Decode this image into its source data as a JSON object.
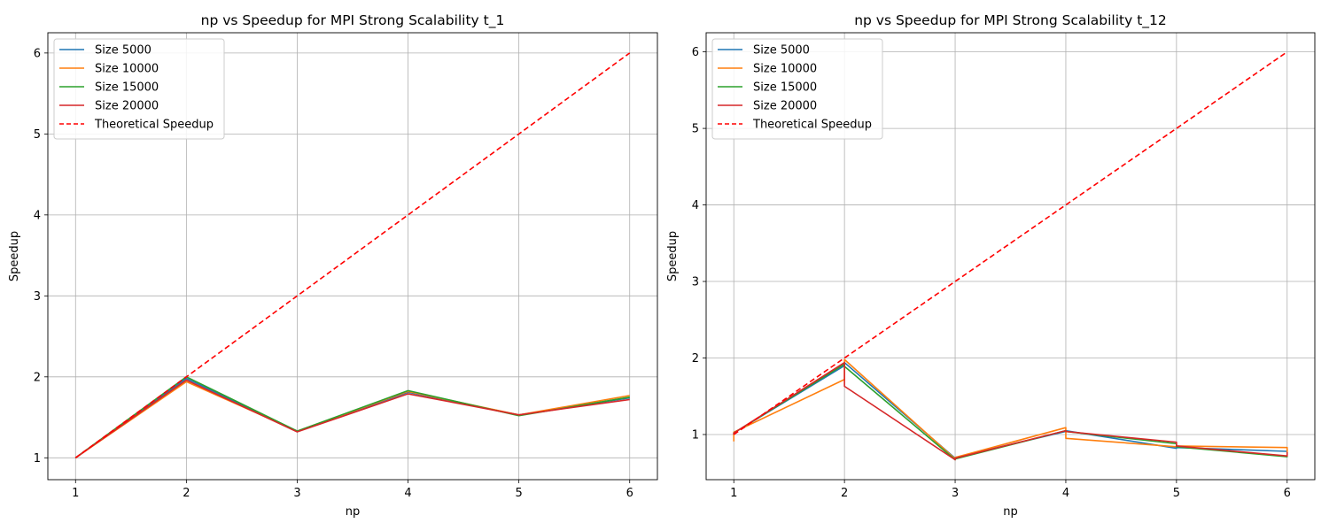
{
  "chart_data": [
    {
      "type": "line",
      "title": "np vs Speedup for MPI Strong Scalability t_1",
      "xlabel": "np",
      "ylabel": "Speedup",
      "xlim": [
        0.75,
        6.25
      ],
      "ylim": [
        0.73,
        6.25
      ],
      "xticks": [
        1,
        2,
        3,
        4,
        5,
        6
      ],
      "yticks": [
        1,
        2,
        3,
        4,
        5,
        6
      ],
      "grid": true,
      "legend_position": "top-left",
      "series": [
        {
          "name": "Size 5000",
          "color": "#1f77b4",
          "dash": false,
          "x": [
            1,
            2,
            3,
            4,
            5,
            6
          ],
          "y": [
            1.0,
            1.98,
            1.33,
            1.81,
            1.53,
            1.74
          ]
        },
        {
          "name": "Size 10000",
          "color": "#ff7f0e",
          "dash": false,
          "x": [
            1,
            2,
            3,
            4,
            5,
            6
          ],
          "y": [
            1.0,
            1.94,
            1.33,
            1.82,
            1.53,
            1.77
          ]
        },
        {
          "name": "Size 15000",
          "color": "#2ca02c",
          "dash": false,
          "x": [
            1,
            2,
            3,
            4,
            5,
            6
          ],
          "y": [
            1.0,
            2.0,
            1.33,
            1.83,
            1.52,
            1.75
          ]
        },
        {
          "name": "Size 20000",
          "color": "#d62728",
          "dash": false,
          "x": [
            1,
            2,
            3,
            4,
            5,
            6
          ],
          "y": [
            1.0,
            1.96,
            1.32,
            1.79,
            1.53,
            1.72
          ]
        },
        {
          "name": "Theoretical Speedup",
          "color": "#ff0000",
          "dash": true,
          "x": [
            1,
            2,
            3,
            4,
            5,
            6
          ],
          "y": [
            1,
            2,
            3,
            4,
            5,
            6
          ]
        }
      ]
    },
    {
      "type": "line",
      "title": "np vs Speedup for MPI Strong Scalability t_12",
      "xlabel": "np",
      "ylabel": "Speedup",
      "xlim": [
        0.75,
        6.25
      ],
      "ylim": [
        0.41,
        6.25
      ],
      "xticks": [
        1,
        2,
        3,
        4,
        5,
        6
      ],
      "yticks": [
        1,
        2,
        3,
        4,
        5,
        6
      ],
      "grid": true,
      "legend_position": "top-left",
      "series": [
        {
          "name": "Size 5000",
          "color": "#1f77b4",
          "dash": false,
          "x": [
            1,
            1,
            2,
            2,
            3,
            3,
            4,
            4,
            5,
            5,
            6,
            6
          ],
          "y": [
            1.0,
            1.02,
            1.9,
            1.94,
            0.69,
            0.7,
            1.04,
            1.05,
            0.82,
            0.83,
            0.78,
            0.8
          ]
        },
        {
          "name": "Size 10000",
          "color": "#ff7f0e",
          "dash": false,
          "x": [
            1,
            1,
            2,
            2,
            3,
            3,
            4,
            4,
            5,
            5,
            6,
            6
          ],
          "y": [
            0.91,
            1.03,
            1.72,
            1.98,
            0.68,
            0.7,
            1.09,
            0.95,
            0.84,
            0.85,
            0.83,
            0.77
          ]
        },
        {
          "name": "Size 15000",
          "color": "#2ca02c",
          "dash": false,
          "x": [
            1,
            1,
            2,
            2,
            3,
            3,
            4,
            4,
            5,
            5,
            6,
            6
          ],
          "y": [
            1.0,
            1.02,
            1.92,
            1.89,
            0.67,
            0.68,
            1.05,
            1.04,
            0.88,
            0.84,
            0.71,
            0.72
          ]
        },
        {
          "name": "Size 20000",
          "color": "#d62728",
          "dash": false,
          "x": [
            1,
            1,
            2,
            2,
            3,
            3,
            4,
            4,
            5,
            5,
            6,
            6
          ],
          "y": [
            1.0,
            1.02,
            1.94,
            1.63,
            0.67,
            0.69,
            1.05,
            1.04,
            0.9,
            0.85,
            0.72,
            0.77
          ]
        },
        {
          "name": "Theoretical Speedup",
          "color": "#ff0000",
          "dash": true,
          "x": [
            1,
            2,
            3,
            4,
            5,
            6
          ],
          "y": [
            1,
            2,
            3,
            4,
            5,
            6
          ]
        }
      ]
    }
  ]
}
